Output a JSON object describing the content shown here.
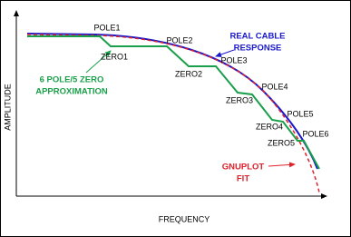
{
  "axes": {
    "y_label": "AMPLITUDE",
    "x_label": "FREQUENCY"
  },
  "labels": {
    "pole1": "POLE1",
    "pole2": "POLE2",
    "pole3": "POLE3",
    "pole4": "POLE4",
    "pole5": "POLE5",
    "pole6": "POLE6",
    "zero1": "ZERO1",
    "zero2": "ZERO2",
    "zero3": "ZERO3",
    "zero4": "ZERO4",
    "zero5": "ZERO5"
  },
  "callouts": {
    "real_cable": [
      "REAL CABLE",
      "RESPONSE"
    ],
    "approximation": [
      "6 POLE/5 ZERO",
      "APPROXIMATION"
    ],
    "gnuplot": [
      "GNUPLOT",
      "FIT"
    ]
  }
}
